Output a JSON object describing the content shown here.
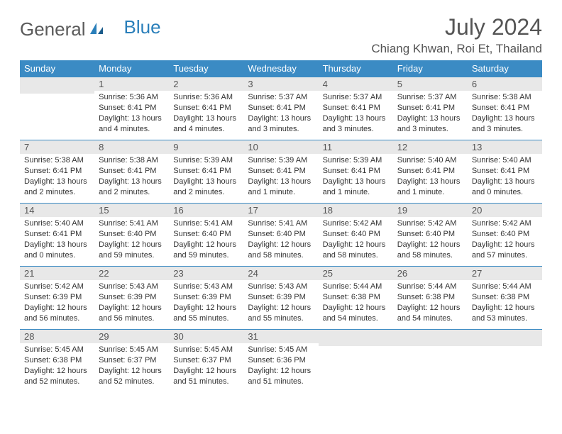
{
  "brand": {
    "part1": "General",
    "part2": "Blue"
  },
  "title": "July 2024",
  "location": "Chiang Khwan, Roi Et, Thailand",
  "colors": {
    "header_bg": "#3b8bc4",
    "daynum_bg": "#e8e8e8",
    "text": "#333333"
  },
  "weekdays": [
    "Sunday",
    "Monday",
    "Tuesday",
    "Wednesday",
    "Thursday",
    "Friday",
    "Saturday"
  ],
  "weeks": [
    [
      null,
      {
        "n": "1",
        "sr": "5:36 AM",
        "ss": "6:41 PM",
        "dl": "13 hours and 4 minutes."
      },
      {
        "n": "2",
        "sr": "5:36 AM",
        "ss": "6:41 PM",
        "dl": "13 hours and 4 minutes."
      },
      {
        "n": "3",
        "sr": "5:37 AM",
        "ss": "6:41 PM",
        "dl": "13 hours and 3 minutes."
      },
      {
        "n": "4",
        "sr": "5:37 AM",
        "ss": "6:41 PM",
        "dl": "13 hours and 3 minutes."
      },
      {
        "n": "5",
        "sr": "5:37 AM",
        "ss": "6:41 PM",
        "dl": "13 hours and 3 minutes."
      },
      {
        "n": "6",
        "sr": "5:38 AM",
        "ss": "6:41 PM",
        "dl": "13 hours and 3 minutes."
      }
    ],
    [
      {
        "n": "7",
        "sr": "5:38 AM",
        "ss": "6:41 PM",
        "dl": "13 hours and 2 minutes."
      },
      {
        "n": "8",
        "sr": "5:38 AM",
        "ss": "6:41 PM",
        "dl": "13 hours and 2 minutes."
      },
      {
        "n": "9",
        "sr": "5:39 AM",
        "ss": "6:41 PM",
        "dl": "13 hours and 2 minutes."
      },
      {
        "n": "10",
        "sr": "5:39 AM",
        "ss": "6:41 PM",
        "dl": "13 hours and 1 minute."
      },
      {
        "n": "11",
        "sr": "5:39 AM",
        "ss": "6:41 PM",
        "dl": "13 hours and 1 minute."
      },
      {
        "n": "12",
        "sr": "5:40 AM",
        "ss": "6:41 PM",
        "dl": "13 hours and 1 minute."
      },
      {
        "n": "13",
        "sr": "5:40 AM",
        "ss": "6:41 PM",
        "dl": "13 hours and 0 minutes."
      }
    ],
    [
      {
        "n": "14",
        "sr": "5:40 AM",
        "ss": "6:41 PM",
        "dl": "13 hours and 0 minutes."
      },
      {
        "n": "15",
        "sr": "5:41 AM",
        "ss": "6:40 PM",
        "dl": "12 hours and 59 minutes."
      },
      {
        "n": "16",
        "sr": "5:41 AM",
        "ss": "6:40 PM",
        "dl": "12 hours and 59 minutes."
      },
      {
        "n": "17",
        "sr": "5:41 AM",
        "ss": "6:40 PM",
        "dl": "12 hours and 58 minutes."
      },
      {
        "n": "18",
        "sr": "5:42 AM",
        "ss": "6:40 PM",
        "dl": "12 hours and 58 minutes."
      },
      {
        "n": "19",
        "sr": "5:42 AM",
        "ss": "6:40 PM",
        "dl": "12 hours and 58 minutes."
      },
      {
        "n": "20",
        "sr": "5:42 AM",
        "ss": "6:40 PM",
        "dl": "12 hours and 57 minutes."
      }
    ],
    [
      {
        "n": "21",
        "sr": "5:42 AM",
        "ss": "6:39 PM",
        "dl": "12 hours and 56 minutes."
      },
      {
        "n": "22",
        "sr": "5:43 AM",
        "ss": "6:39 PM",
        "dl": "12 hours and 56 minutes."
      },
      {
        "n": "23",
        "sr": "5:43 AM",
        "ss": "6:39 PM",
        "dl": "12 hours and 55 minutes."
      },
      {
        "n": "24",
        "sr": "5:43 AM",
        "ss": "6:39 PM",
        "dl": "12 hours and 55 minutes."
      },
      {
        "n": "25",
        "sr": "5:44 AM",
        "ss": "6:38 PM",
        "dl": "12 hours and 54 minutes."
      },
      {
        "n": "26",
        "sr": "5:44 AM",
        "ss": "6:38 PM",
        "dl": "12 hours and 54 minutes."
      },
      {
        "n": "27",
        "sr": "5:44 AM",
        "ss": "6:38 PM",
        "dl": "12 hours and 53 minutes."
      }
    ],
    [
      {
        "n": "28",
        "sr": "5:45 AM",
        "ss": "6:38 PM",
        "dl": "12 hours and 52 minutes."
      },
      {
        "n": "29",
        "sr": "5:45 AM",
        "ss": "6:37 PM",
        "dl": "12 hours and 52 minutes."
      },
      {
        "n": "30",
        "sr": "5:45 AM",
        "ss": "6:37 PM",
        "dl": "12 hours and 51 minutes."
      },
      {
        "n": "31",
        "sr": "5:45 AM",
        "ss": "6:36 PM",
        "dl": "12 hours and 51 minutes."
      },
      null,
      null,
      null
    ]
  ]
}
